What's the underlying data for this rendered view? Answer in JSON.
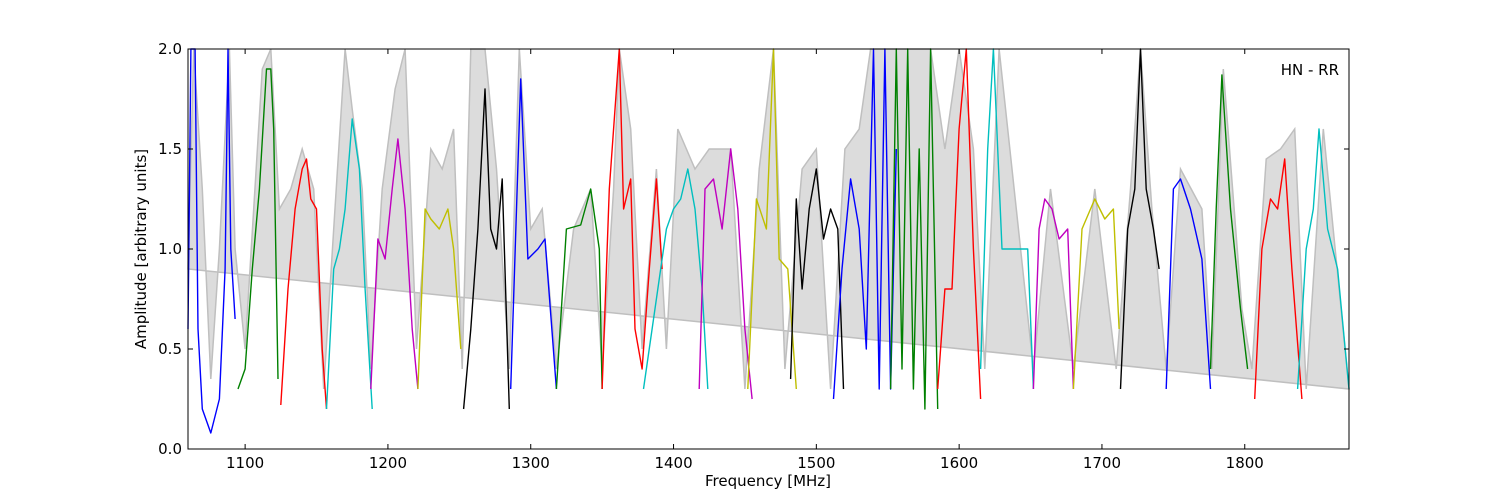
{
  "chart_data": {
    "type": "line",
    "title": "",
    "annotation": "HN - RR",
    "xlabel": "Frequency [MHz]",
    "ylabel": "Amplitude [arbitrary units]",
    "xlim": [
      1060,
      1873
    ],
    "ylim": [
      0,
      2.0
    ],
    "x_ticks": [
      1100,
      1200,
      1300,
      1400,
      1500,
      1600,
      1700,
      1800
    ],
    "y_ticks": [
      0.0,
      0.5,
      1.0,
      1.5,
      2.0
    ],
    "x_tick_labels": [
      "1100",
      "1200",
      "1300",
      "1400",
      "1500",
      "1600",
      "1700",
      "1800"
    ],
    "y_tick_labels": [
      "0.0",
      "0.5",
      "1.0",
      "1.5",
      "2.0"
    ],
    "grid": false,
    "legend": "none",
    "envelope_color": "#bfbfbf",
    "colors": {
      "blue": "#0000ff",
      "green": "#008000",
      "red": "#ff0000",
      "cyan": "#00bfbf",
      "magenta": "#bf00bf",
      "olive": "#bfbf00",
      "black": "#000000"
    },
    "envelope": [
      [
        1060,
        0.9
      ],
      [
        1064,
        2.0
      ],
      [
        1070,
        1.3
      ],
      [
        1076,
        0.35
      ],
      [
        1082,
        1.0
      ],
      [
        1089,
        2.0
      ],
      [
        1093,
        1.0
      ],
      [
        1100,
        0.5
      ],
      [
        1112,
        1.9
      ],
      [
        1118,
        2.0
      ],
      [
        1124,
        1.2
      ],
      [
        1132,
        1.3
      ],
      [
        1140,
        1.5
      ],
      [
        1148,
        1.3
      ],
      [
        1155,
        0.3
      ],
      [
        1162,
        1.1
      ],
      [
        1170,
        2.0
      ],
      [
        1175,
        1.7
      ],
      [
        1182,
        1.3
      ],
      [
        1188,
        0.4
      ],
      [
        1196,
        1.3
      ],
      [
        1205,
        1.8
      ],
      [
        1212,
        2.0
      ],
      [
        1220,
        0.5
      ],
      [
        1230,
        1.5
      ],
      [
        1238,
        1.4
      ],
      [
        1246,
        1.6
      ],
      [
        1252,
        0.4
      ],
      [
        1258,
        2.0
      ],
      [
        1268,
        2.0
      ],
      [
        1276,
        1.4
      ],
      [
        1285,
        0.4
      ],
      [
        1292,
        2.0
      ],
      [
        1300,
        1.1
      ],
      [
        1308,
        1.2
      ],
      [
        1318,
        0.4
      ],
      [
        1330,
        1.1
      ],
      [
        1342,
        1.3
      ],
      [
        1350,
        0.4
      ],
      [
        1358,
        1.3
      ],
      [
        1362,
        2.0
      ],
      [
        1370,
        1.6
      ],
      [
        1378,
        0.5
      ],
      [
        1388,
        1.4
      ],
      [
        1395,
        0.5
      ],
      [
        1403,
        1.6
      ],
      [
        1415,
        1.4
      ],
      [
        1425,
        1.5
      ],
      [
        1440,
        1.5
      ],
      [
        1450,
        0.3
      ],
      [
        1460,
        1.4
      ],
      [
        1470,
        2.0
      ],
      [
        1478,
        0.4
      ],
      [
        1490,
        1.4
      ],
      [
        1500,
        1.5
      ],
      [
        1510,
        0.3
      ],
      [
        1520,
        1.5
      ],
      [
        1530,
        1.6
      ],
      [
        1538,
        2.0
      ],
      [
        1550,
        2.0
      ],
      [
        1562,
        2.0
      ],
      [
        1572,
        2.0
      ],
      [
        1580,
        2.0
      ],
      [
        1590,
        1.5
      ],
      [
        1600,
        2.0
      ],
      [
        1610,
        1.5
      ],
      [
        1618,
        0.4
      ],
      [
        1628,
        2.0
      ],
      [
        1640,
        1.2
      ],
      [
        1652,
        0.4
      ],
      [
        1664,
        1.3
      ],
      [
        1680,
        0.4
      ],
      [
        1695,
        1.3
      ],
      [
        1710,
        0.4
      ],
      [
        1720,
        1.3
      ],
      [
        1727,
        2.0
      ],
      [
        1735,
        1.2
      ],
      [
        1745,
        0.4
      ],
      [
        1755,
        1.4
      ],
      [
        1770,
        1.2
      ],
      [
        1777,
        0.4
      ],
      [
        1785,
        1.9
      ],
      [
        1798,
        0.7
      ],
      [
        1805,
        0.4
      ],
      [
        1815,
        1.45
      ],
      [
        1825,
        1.5
      ],
      [
        1835,
        1.6
      ],
      [
        1843,
        0.3
      ],
      [
        1855,
        1.6
      ],
      [
        1873,
        0.3
      ]
    ],
    "series": [
      {
        "color": "blue",
        "points": [
          [
            1060,
            0.6
          ],
          [
            1062,
            2.0
          ],
          [
            1065,
            2.0
          ],
          [
            1067,
            0.6
          ],
          [
            1070,
            0.2
          ],
          [
            1076,
            0.08
          ],
          [
            1082,
            0.25
          ],
          [
            1086,
            0.9
          ],
          [
            1088,
            2.0
          ],
          [
            1090,
            1.0
          ],
          [
            1093,
            0.65
          ]
        ]
      },
      {
        "color": "green",
        "points": [
          [
            1095,
            0.3
          ],
          [
            1100,
            0.4
          ],
          [
            1105,
            0.9
          ],
          [
            1110,
            1.3
          ],
          [
            1115,
            1.9
          ],
          [
            1118,
            1.9
          ],
          [
            1120,
            1.6
          ],
          [
            1123,
            0.35
          ]
        ]
      },
      {
        "color": "red",
        "points": [
          [
            1125,
            0.22
          ],
          [
            1130,
            0.8
          ],
          [
            1135,
            1.2
          ],
          [
            1140,
            1.4
          ],
          [
            1143,
            1.45
          ],
          [
            1146,
            1.25
          ],
          [
            1150,
            1.2
          ],
          [
            1154,
            0.5
          ],
          [
            1157,
            0.2
          ]
        ]
      },
      {
        "color": "cyan",
        "points": [
          [
            1157,
            0.2
          ],
          [
            1162,
            0.9
          ],
          [
            1166,
            1.0
          ],
          [
            1170,
            1.2
          ],
          [
            1175,
            1.65
          ],
          [
            1180,
            1.4
          ],
          [
            1184,
            0.8
          ],
          [
            1189,
            0.2
          ]
        ]
      },
      {
        "color": "magenta",
        "points": [
          [
            1188,
            0.3
          ],
          [
            1193,
            1.05
          ],
          [
            1198,
            0.95
          ],
          [
            1203,
            1.3
          ],
          [
            1207,
            1.55
          ],
          [
            1212,
            1.2
          ],
          [
            1217,
            0.6
          ],
          [
            1221,
            0.3
          ]
        ]
      },
      {
        "color": "olive",
        "points": [
          [
            1221,
            0.3
          ],
          [
            1226,
            1.2
          ],
          [
            1230,
            1.15
          ],
          [
            1236,
            1.1
          ],
          [
            1242,
            1.2
          ],
          [
            1246,
            1.0
          ],
          [
            1251,
            0.5
          ]
        ]
      },
      {
        "color": "black",
        "points": [
          [
            1253,
            0.2
          ],
          [
            1258,
            0.6
          ],
          [
            1263,
            1.1
          ],
          [
            1268,
            1.8
          ],
          [
            1272,
            1.1
          ],
          [
            1276,
            1.0
          ],
          [
            1280,
            1.35
          ],
          [
            1285,
            0.2
          ]
        ]
      },
      {
        "color": "blue",
        "points": [
          [
            1286,
            0.3
          ],
          [
            1290,
            1.2
          ],
          [
            1293,
            1.85
          ],
          [
            1298,
            0.95
          ],
          [
            1305,
            1.0
          ],
          [
            1310,
            1.05
          ],
          [
            1318,
            0.3
          ]
        ]
      },
      {
        "color": "green",
        "points": [
          [
            1318,
            0.3
          ],
          [
            1325,
            1.1
          ],
          [
            1335,
            1.12
          ],
          [
            1342,
            1.3
          ],
          [
            1348,
            1.0
          ],
          [
            1350,
            0.3
          ]
        ]
      },
      {
        "color": "red",
        "points": [
          [
            1350,
            0.3
          ],
          [
            1355,
            1.3
          ],
          [
            1362,
            2.0
          ],
          [
            1365,
            1.2
          ],
          [
            1370,
            1.35
          ],
          [
            1373,
            0.6
          ],
          [
            1378,
            0.4
          ],
          [
            1383,
            0.9
          ],
          [
            1388,
            1.35
          ],
          [
            1392,
            0.9
          ]
        ]
      },
      {
        "color": "cyan",
        "points": [
          [
            1379,
            0.3
          ],
          [
            1385,
            0.6
          ],
          [
            1395,
            1.1
          ],
          [
            1400,
            1.2
          ],
          [
            1405,
            1.25
          ],
          [
            1410,
            1.4
          ],
          [
            1415,
            1.2
          ],
          [
            1420,
            0.8
          ],
          [
            1424,
            0.3
          ]
        ]
      },
      {
        "color": "magenta",
        "points": [
          [
            1418,
            0.3
          ],
          [
            1422,
            1.3
          ],
          [
            1428,
            1.35
          ],
          [
            1434,
            1.1
          ],
          [
            1440,
            1.5
          ],
          [
            1445,
            1.2
          ],
          [
            1450,
            0.6
          ],
          [
            1455,
            0.25
          ]
        ]
      },
      {
        "color": "olive",
        "points": [
          [
            1452,
            0.3
          ],
          [
            1458,
            1.25
          ],
          [
            1465,
            1.1
          ],
          [
            1470,
            2.0
          ],
          [
            1474,
            0.95
          ],
          [
            1480,
            0.9
          ],
          [
            1486,
            0.3
          ]
        ]
      },
      {
        "color": "black",
        "points": [
          [
            1482,
            0.35
          ],
          [
            1486,
            1.25
          ],
          [
            1490,
            0.8
          ],
          [
            1495,
            1.2
          ],
          [
            1500,
            1.4
          ],
          [
            1505,
            1.05
          ],
          [
            1510,
            1.2
          ],
          [
            1515,
            1.1
          ],
          [
            1519,
            0.3
          ]
        ]
      },
      {
        "color": "blue",
        "points": [
          [
            1512,
            0.25
          ],
          [
            1518,
            0.9
          ],
          [
            1524,
            1.35
          ],
          [
            1530,
            1.1
          ],
          [
            1535,
            0.5
          ],
          [
            1540,
            2.0
          ],
          [
            1544,
            0.3
          ],
          [
            1548,
            2.0
          ],
          [
            1552,
            0.3
          ],
          [
            1556,
            1.5
          ]
        ]
      },
      {
        "color": "green",
        "points": [
          [
            1552,
            0.3
          ],
          [
            1556,
            2.0
          ],
          [
            1560,
            0.4
          ],
          [
            1564,
            2.0
          ],
          [
            1568,
            0.3
          ],
          [
            1572,
            1.5
          ],
          [
            1576,
            0.2
          ],
          [
            1580,
            2.0
          ],
          [
            1585,
            0.2
          ]
        ]
      },
      {
        "color": "red",
        "points": [
          [
            1585,
            0.3
          ],
          [
            1590,
            0.8
          ],
          [
            1595,
            0.8
          ],
          [
            1600,
            1.6
          ],
          [
            1605,
            2.0
          ],
          [
            1610,
            1.0
          ],
          [
            1615,
            0.25
          ]
        ]
      },
      {
        "color": "cyan",
        "points": [
          [
            1615,
            0.4
          ],
          [
            1620,
            1.5
          ],
          [
            1624,
            2.0
          ],
          [
            1630,
            1.0
          ],
          [
            1640,
            1.0
          ],
          [
            1648,
            1.0
          ],
          [
            1652,
            0.3
          ]
        ]
      },
      {
        "color": "magenta",
        "points": [
          [
            1652,
            0.3
          ],
          [
            1656,
            1.1
          ],
          [
            1660,
            1.25
          ],
          [
            1665,
            1.2
          ],
          [
            1670,
            1.05
          ],
          [
            1676,
            1.1
          ],
          [
            1680,
            0.3
          ]
        ]
      },
      {
        "color": "olive",
        "points": [
          [
            1680,
            0.3
          ],
          [
            1686,
            1.1
          ],
          [
            1695,
            1.25
          ],
          [
            1702,
            1.15
          ],
          [
            1708,
            1.2
          ],
          [
            1712,
            0.6
          ]
        ]
      },
      {
        "color": "black",
        "points": [
          [
            1713,
            0.3
          ],
          [
            1718,
            1.1
          ],
          [
            1723,
            1.3
          ],
          [
            1727,
            2.0
          ],
          [
            1731,
            1.3
          ],
          [
            1736,
            1.1
          ],
          [
            1740,
            0.9
          ]
        ]
      },
      {
        "color": "blue",
        "points": [
          [
            1745,
            0.3
          ],
          [
            1750,
            1.3
          ],
          [
            1755,
            1.35
          ],
          [
            1762,
            1.2
          ],
          [
            1770,
            0.95
          ],
          [
            1776,
            0.3
          ]
        ]
      },
      {
        "color": "green",
        "points": [
          [
            1776,
            0.4
          ],
          [
            1780,
            1.2
          ],
          [
            1784,
            1.87
          ],
          [
            1790,
            1.2
          ],
          [
            1797,
            0.7
          ],
          [
            1802,
            0.4
          ]
        ]
      },
      {
        "color": "red",
        "points": [
          [
            1807,
            0.25
          ],
          [
            1812,
            1.0
          ],
          [
            1818,
            1.25
          ],
          [
            1823,
            1.2
          ],
          [
            1828,
            1.45
          ],
          [
            1833,
            0.9
          ],
          [
            1840,
            0.25
          ]
        ]
      },
      {
        "color": "cyan",
        "points": [
          [
            1837,
            0.3
          ],
          [
            1843,
            1.0
          ],
          [
            1848,
            1.2
          ],
          [
            1852,
            1.6
          ],
          [
            1858,
            1.1
          ],
          [
            1865,
            0.9
          ],
          [
            1873,
            0.3
          ]
        ]
      }
    ]
  }
}
